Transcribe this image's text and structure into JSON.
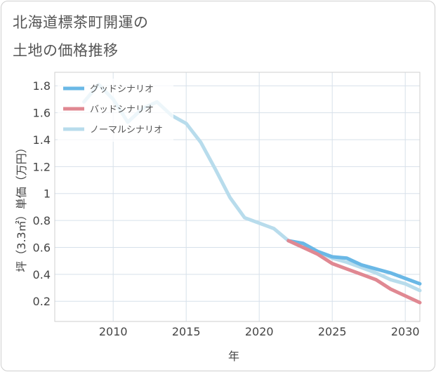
{
  "chart_data": {
    "type": "line",
    "title_lines": [
      "北海道標茶町開運の",
      "土地の価格推移"
    ],
    "xlabel": "年",
    "ylabel": "坪（3.3㎡）単価（万円）",
    "xlim": [
      2006,
      2031
    ],
    "ylim": [
      0.05,
      1.9
    ],
    "x_ticks": [
      2010,
      2015,
      2020,
      2025,
      2030
    ],
    "y_ticks": [
      0.2,
      0.4,
      0.6,
      0.8,
      1,
      1.2,
      1.4,
      1.6,
      1.8
    ],
    "grid": true,
    "legend_position": "top-left",
    "series": [
      {
        "name": "グッドシナリオ",
        "color": "#6ab8e6",
        "x": [
          2022,
          2023,
          2024,
          2025,
          2026,
          2027,
          2028,
          2029,
          2030,
          2031
        ],
        "values": [
          0.65,
          0.63,
          0.57,
          0.53,
          0.52,
          0.47,
          0.44,
          0.41,
          0.37,
          0.33
        ]
      },
      {
        "name": "バッドシナリオ",
        "color": "#e08892",
        "x": [
          2022,
          2023,
          2024,
          2025,
          2026,
          2027,
          2028,
          2029,
          2030,
          2031
        ],
        "values": [
          0.65,
          0.6,
          0.55,
          0.48,
          0.44,
          0.4,
          0.36,
          0.29,
          0.24,
          0.19
        ]
      },
      {
        "name": "ノーマルシナリオ",
        "color": "#b8dcec",
        "x": [
          2008,
          2009,
          2010,
          2011,
          2012,
          2013,
          2014,
          2015,
          2016,
          2017,
          2018,
          2019,
          2020,
          2021,
          2022,
          2023,
          2024,
          2025,
          2026,
          2027,
          2028,
          2029,
          2030,
          2031
        ],
        "values": [
          1.68,
          1.81,
          1.7,
          1.53,
          1.63,
          1.68,
          1.58,
          1.52,
          1.38,
          1.18,
          0.97,
          0.82,
          0.78,
          0.74,
          0.65,
          0.6,
          0.57,
          0.52,
          0.49,
          0.45,
          0.41,
          0.36,
          0.33,
          0.28
        ]
      }
    ]
  }
}
